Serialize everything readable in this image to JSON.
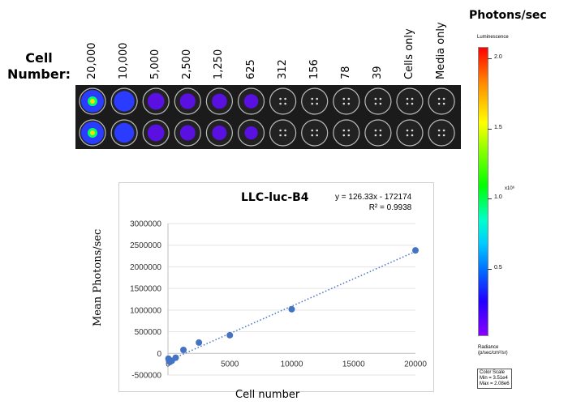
{
  "cell_number_label": "Cell\nNumber:",
  "well_columns": [
    "20,000",
    "10,000",
    "5,000",
    "2,500",
    "1,250",
    "625",
    "312",
    "156",
    "78",
    "39",
    "Cells only",
    "Media only"
  ],
  "colorbar": {
    "title": "Photons/sec",
    "luminescence_label": "Luminescence",
    "ticks": [
      "2.0",
      "1.5",
      "1.0",
      "0.5"
    ],
    "exponent": "x10⁶",
    "radiance_label": "Radiance",
    "radiance_units": "(p/sec/cm²/sr)",
    "color_scale_label": "Color Scale",
    "min_label": "Min = 3.51e4",
    "max_label": "Max = 2.08e6"
  },
  "chart_data": {
    "type": "scatter",
    "title": "LLC-luc-B4",
    "equation": "y = 126.33x - 172174",
    "r_squared": "R² = 0.9938",
    "xlabel": "Cell number",
    "ylabel": "Mean Photons/sec",
    "xlim": [
      0,
      20000
    ],
    "ylim": [
      -500000,
      3000000
    ],
    "x_ticks": [
      "0",
      "5000",
      "10000",
      "15000",
      "20000"
    ],
    "y_ticks": [
      "3000000",
      "2500000",
      "2000000",
      "1500000",
      "1000000",
      "500000",
      "0",
      "-500000"
    ],
    "grid": "horizontal",
    "marker_color": "#4472c4",
    "trendline": {
      "slope": 126.33,
      "intercept": -172174,
      "style": "dotted"
    },
    "series": [
      {
        "x": [
          20000,
          10000,
          5000,
          2500,
          1250,
          625,
          312,
          156,
          78,
          39
        ],
        "y": [
          2380000,
          1020000,
          420000,
          250000,
          80000,
          -100000,
          -170000,
          -200000,
          -160000,
          -120000
        ]
      }
    ]
  },
  "plate": {
    "signal_intensity": [
      [
        0.95,
        0.55,
        0.3,
        0.22,
        0.18,
        0.12,
        0,
        0,
        0,
        0,
        0,
        0
      ],
      [
        0.95,
        0.5,
        0.3,
        0.2,
        0.15,
        0.05,
        0,
        0,
        0,
        0,
        0,
        0
      ]
    ]
  }
}
